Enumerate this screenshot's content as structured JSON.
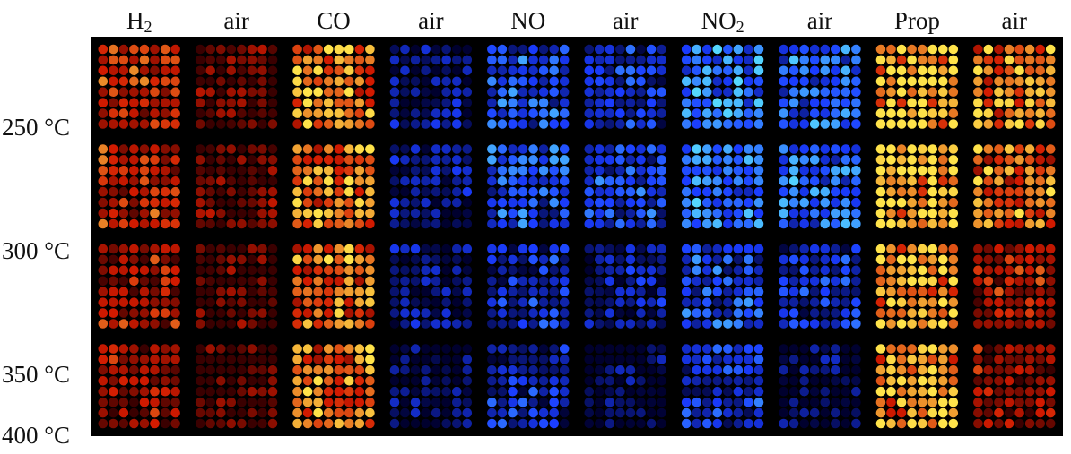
{
  "columns": [
    {
      "label": "H",
      "sub": "2",
      "scale": "heat"
    },
    {
      "label": "air",
      "sub": "",
      "scale": "heat"
    },
    {
      "label": "CO",
      "sub": "",
      "scale": "heat"
    },
    {
      "label": "air",
      "sub": "",
      "scale": "cool"
    },
    {
      "label": "NO",
      "sub": "",
      "scale": "cool"
    },
    {
      "label": "air",
      "sub": "",
      "scale": "cool"
    },
    {
      "label": "NO",
      "sub": "2",
      "scale": "cool"
    },
    {
      "label": "air",
      "sub": "",
      "scale": "cool"
    },
    {
      "label": "Prop",
      "sub": "",
      "scale": "heat"
    },
    {
      "label": "air",
      "sub": "",
      "scale": "heat"
    }
  ],
  "temperatures": [
    "250 °C",
    "300 °C",
    "350 °C",
    "400 °C"
  ],
  "colors": {
    "background": "#000000",
    "heat_low": "#3a0000",
    "heat_mid": "#d21a00",
    "heat_high": "#ffe34a",
    "cool_low": "#00002e",
    "cool_mid": "#1a3cff",
    "cool_high": "#55d8ff"
  },
  "intensity": [
    [
      0.5,
      0.15,
      0.78,
      0.2,
      0.55,
      0.4,
      0.75,
      0.65,
      0.95,
      0.78
    ],
    [
      0.48,
      0.18,
      0.75,
      0.22,
      0.55,
      0.5,
      0.72,
      0.68,
      0.95,
      0.7
    ],
    [
      0.4,
      0.12,
      0.74,
      0.2,
      0.4,
      0.28,
      0.52,
      0.4,
      0.92,
      0.4
    ],
    [
      0.35,
      0.06,
      0.72,
      0.1,
      0.38,
      0.08,
      0.45,
      0.1,
      0.88,
      0.35
    ]
  ]
}
